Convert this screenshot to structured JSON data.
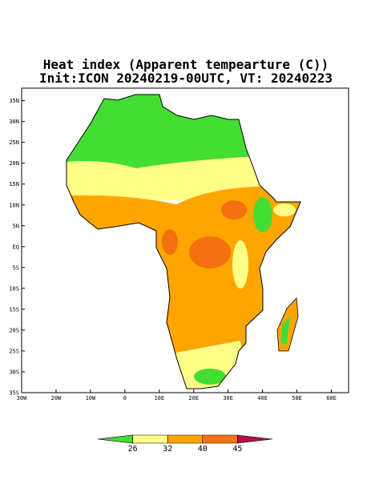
{
  "map": {
    "title": [
      "Heat index (Apparent tempearture (C))",
      "Init:ICON 20240219-00UTC, VT: 20240223"
    ],
    "xlim": [
      -30,
      65
    ],
    "ylim": [
      -35,
      38
    ],
    "xticks": [
      {
        "value": -30,
        "label": "30W"
      },
      {
        "value": -20,
        "label": "20W"
      },
      {
        "value": -10,
        "label": "10W"
      },
      0,
      {
        "value": 10,
        "label": "10E"
      },
      {
        "value": 20,
        "label": "20E"
      },
      {
        "value": 30,
        "label": "30E"
      },
      {
        "value": 40,
        "label": "40E"
      },
      {
        "value": 50,
        "label": "50E"
      },
      {
        "value": 60,
        "label": "60E"
      }
    ],
    "yticks": [
      {
        "value": 35,
        "label": "35N"
      },
      {
        "value": 30,
        "label": "30N"
      },
      {
        "value": 25,
        "label": "25N"
      },
      {
        "value": 20,
        "label": "20N"
      },
      {
        "value": 15,
        "label": "15N"
      },
      {
        "value": 10,
        "label": "10N"
      },
      {
        "value": 5,
        "label": "5N"
      },
      {
        "value": 0,
        "label": "EQ"
      },
      {
        "value": -5,
        "label": "5S"
      },
      {
        "value": -10,
        "label": "10S"
      },
      {
        "value": -15,
        "label": "15S"
      },
      {
        "value": -20,
        "label": "20S"
      },
      {
        "value": -25,
        "label": "25S"
      },
      {
        "value": -30,
        "label": "30S"
      },
      {
        "value": -35,
        "label": "35S"
      }
    ],
    "colorbar": {
      "levels": [
        26,
        32,
        40,
        45
      ],
      "colors": [
        "#44dd33",
        "#ffff88",
        "#ffa500",
        "#f57010",
        "#b0104a"
      ]
    }
  }
}
